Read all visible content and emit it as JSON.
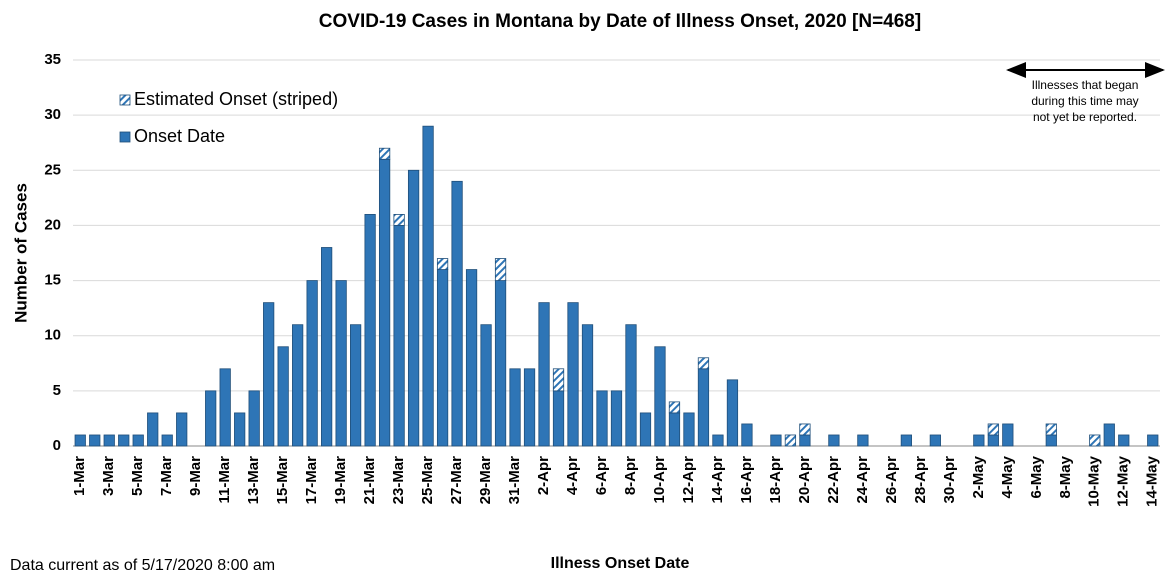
{
  "chart_data": {
    "type": "bar",
    "stacked": true,
    "title": "COVID-19 Cases in Montana by Date of Illness Onset, 2020 [N=468]",
    "x_label": "Illness Onset Date",
    "y_label": "Number of Cases",
    "footnote": "Data current as of 5/17/2020 8:00 am",
    "annotation": [
      "Illnesses that began",
      "during this time may",
      "not yet be reported."
    ],
    "categories": [
      "1-Mar",
      null,
      "3-Mar",
      null,
      "5-Mar",
      null,
      "7-Mar",
      null,
      "9-Mar",
      null,
      "11-Mar",
      null,
      "13-Mar",
      null,
      "15-Mar",
      null,
      "17-Mar",
      null,
      "19-Mar",
      null,
      "21-Mar",
      null,
      "23-Mar",
      null,
      "25-Mar",
      null,
      "27-Mar",
      null,
      "29-Mar",
      null,
      "31-Mar",
      null,
      "2-Apr",
      null,
      "4-Apr",
      null,
      "6-Apr",
      null,
      "8-Apr",
      null,
      "10-Apr",
      null,
      "12-Apr",
      null,
      "14-Apr",
      null,
      "16-Apr",
      null,
      "18-Apr",
      null,
      "20-Apr",
      null,
      "22-Apr",
      null,
      "24-Apr",
      null,
      "26-Apr",
      null,
      "28-Apr",
      null,
      "30-Apr",
      null,
      "2-May",
      null,
      "4-May",
      null,
      "6-May",
      null,
      "8-May",
      null,
      "10-May",
      null,
      "12-May",
      null,
      "14-May"
    ],
    "series": [
      {
        "name": "Onset Date",
        "color": "#2e75b6",
        "pattern": "solid",
        "values": [
          1,
          1,
          1,
          1,
          1,
          3,
          1,
          3,
          0,
          5,
          7,
          3,
          5,
          13,
          9,
          11,
          15,
          18,
          15,
          11,
          21,
          26,
          20,
          25,
          29,
          16,
          24,
          16,
          11,
          15,
          7,
          7,
          13,
          5,
          13,
          11,
          5,
          5,
          11,
          3,
          9,
          3,
          3,
          7,
          1,
          6,
          2,
          0,
          1,
          0,
          1,
          0,
          1,
          0,
          1,
          0,
          0,
          1,
          0,
          1,
          0,
          0,
          1,
          1,
          2,
          0,
          0,
          1,
          0,
          0,
          0,
          2,
          1,
          0,
          1
        ]
      },
      {
        "name": "Estimated Onset (striped)",
        "color": "#2e75b6",
        "pattern": "striped",
        "values": [
          0,
          0,
          0,
          0,
          0,
          0,
          0,
          0,
          0,
          0,
          0,
          0,
          0,
          0,
          0,
          0,
          0,
          0,
          0,
          0,
          0,
          1,
          1,
          0,
          0,
          1,
          0,
          0,
          0,
          2,
          0,
          0,
          0,
          2,
          0,
          0,
          0,
          0,
          0,
          0,
          0,
          1,
          0,
          1,
          0,
          0,
          0,
          0,
          0,
          1,
          1,
          0,
          0,
          0,
          0,
          0,
          0,
          0,
          0,
          0,
          0,
          0,
          0,
          1,
          0,
          0,
          0,
          1,
          0,
          0,
          1,
          0,
          0,
          0,
          0
        ]
      }
    ],
    "ylim": [
      0,
      35
    ],
    "yticks": [
      0,
      5,
      10,
      15,
      20,
      25,
      30,
      35
    ],
    "grid": true
  }
}
